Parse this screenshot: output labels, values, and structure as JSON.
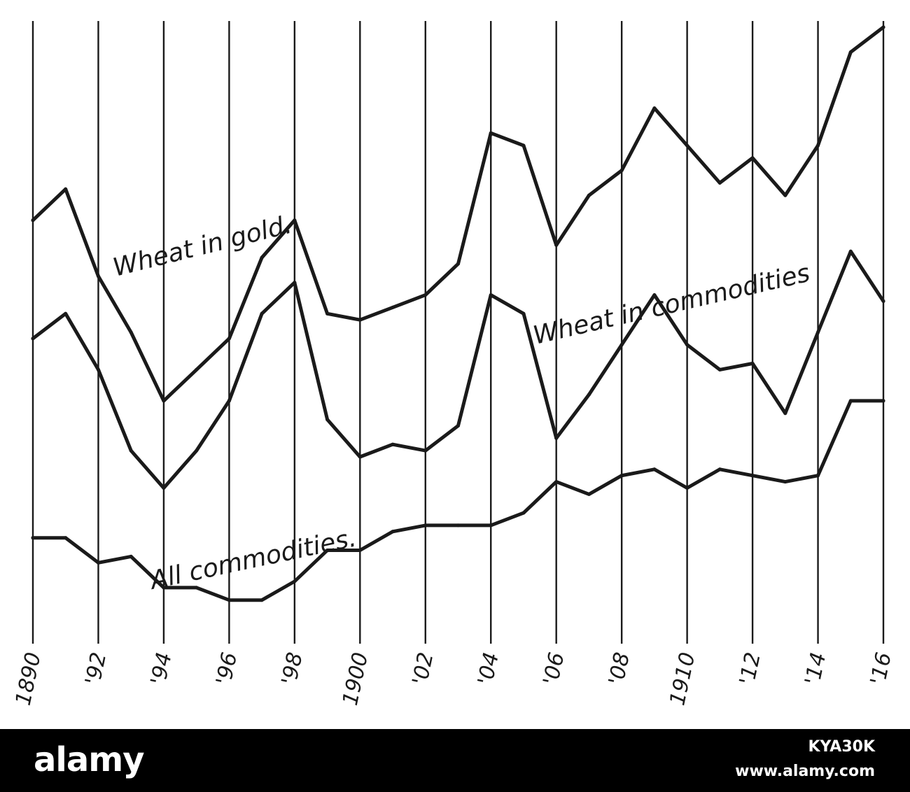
{
  "chart_data": {
    "type": "line",
    "x": [
      1890,
      1891,
      1892,
      1893,
      1894,
      1895,
      1896,
      1897,
      1898,
      1899,
      1900,
      1901,
      1902,
      1903,
      1904,
      1905,
      1906,
      1907,
      1908,
      1909,
      1910,
      1911,
      1912,
      1913,
      1914,
      1915,
      1916
    ],
    "x_tick_years": [
      1890,
      1892,
      1894,
      1896,
      1898,
      1900,
      1902,
      1904,
      1906,
      1908,
      1910,
      1912,
      1914,
      1916
    ],
    "x_tick_labels": [
      "1890",
      "'92",
      "'94",
      "'96",
      "'98",
      "1900",
      "'02",
      "'04",
      "'06",
      "'08",
      "1910",
      "'12",
      "'14",
      "'16"
    ],
    "y_axis": "none (relative index, no values printed)",
    "ylim": [
      0,
      100
    ],
    "grid": "vertical lines at every other year",
    "series": [
      {
        "name": "Wheat in gold.",
        "values": [
          68,
          73,
          59,
          50,
          39,
          44,
          49,
          62,
          68,
          53,
          52,
          54,
          56,
          61,
          82,
          80,
          64,
          72,
          76,
          86,
          80,
          74,
          78,
          72,
          80,
          95,
          99
        ]
      },
      {
        "name": "Wheat in commodities",
        "values": [
          49,
          53,
          44,
          31,
          25,
          31,
          39,
          53,
          58,
          36,
          30,
          32,
          31,
          35,
          56,
          53,
          33,
          40,
          48,
          56,
          48,
          44,
          45,
          37,
          50,
          63,
          55
        ]
      },
      {
        "name": "All commodities.",
        "values": [
          17,
          17,
          13,
          14,
          9,
          9,
          7,
          7,
          10,
          15,
          15,
          18,
          19,
          19,
          19,
          21,
          26,
          24,
          27,
          28,
          25,
          28,
          27,
          26,
          27,
          39,
          39
        ]
      }
    ]
  },
  "footer": {
    "brand": "alamy",
    "image_id": "KYA30K",
    "url": "www.alamy.com"
  }
}
